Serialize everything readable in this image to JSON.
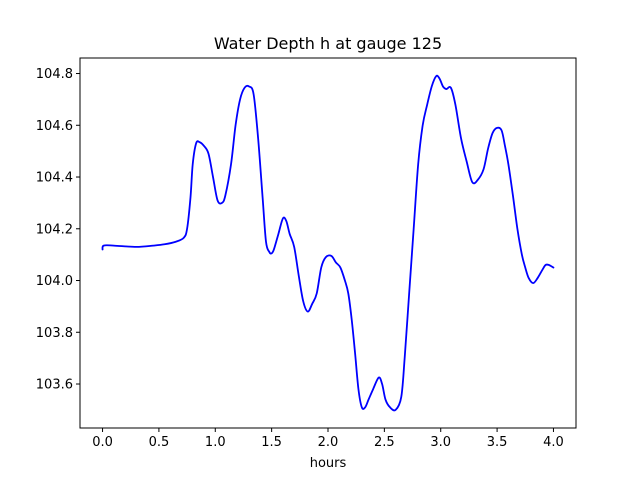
{
  "chart_data": {
    "type": "line",
    "title": "Water Depth h at gauge 125",
    "xlabel": "hours",
    "ylabel": "",
    "xlim": [
      -0.2,
      4.2
    ],
    "ylim": [
      103.43,
      104.86
    ],
    "xticks": [
      0.0,
      0.5,
      1.0,
      1.5,
      2.0,
      2.5,
      3.0,
      3.5,
      4.0
    ],
    "xtick_labels": [
      "0.0",
      "0.5",
      "1.0",
      "1.5",
      "2.0",
      "2.5",
      "3.0",
      "3.5",
      "4.0"
    ],
    "yticks": [
      103.6,
      103.8,
      104.0,
      104.2,
      104.4,
      104.6,
      104.8
    ],
    "ytick_labels": [
      "103.6",
      "103.8",
      "104.0",
      "104.2",
      "104.4",
      "104.6",
      "104.8"
    ],
    "grid": false,
    "series": [
      {
        "color": "#0000ff",
        "x": [
          0.0,
          0.01,
          0.1,
          0.3,
          0.45,
          0.55,
          0.65,
          0.72,
          0.75,
          0.78,
          0.8,
          0.83,
          0.86,
          0.9,
          0.94,
          0.98,
          1.02,
          1.06,
          1.09,
          1.14,
          1.18,
          1.22,
          1.26,
          1.3,
          1.34,
          1.38,
          1.42,
          1.45,
          1.48,
          1.5,
          1.52,
          1.56,
          1.6,
          1.63,
          1.66,
          1.7,
          1.74,
          1.78,
          1.82,
          1.86,
          1.9,
          1.94,
          1.98,
          2.03,
          2.07,
          2.11,
          2.15,
          2.18,
          2.21,
          2.24,
          2.27,
          2.3,
          2.33,
          2.36,
          2.4,
          2.45,
          2.48,
          2.51,
          2.55,
          2.6,
          2.65,
          2.68,
          2.72,
          2.76,
          2.8,
          2.84,
          2.88,
          2.92,
          2.96,
          2.99,
          3.02,
          3.05,
          3.09,
          3.13,
          3.18,
          3.23,
          3.28,
          3.33,
          3.38,
          3.42,
          3.46,
          3.5,
          3.54,
          3.57,
          3.6,
          3.64,
          3.68,
          3.72,
          3.75,
          3.78,
          3.82,
          3.86,
          3.9,
          3.93,
          3.96,
          4.0
        ],
        "y": [
          104.12,
          104.135,
          104.135,
          104.13,
          104.135,
          104.14,
          104.15,
          104.165,
          104.2,
          104.32,
          104.45,
          104.53,
          104.535,
          104.52,
          104.49,
          104.4,
          104.31,
          104.3,
          104.33,
          104.45,
          104.6,
          104.7,
          104.745,
          104.75,
          104.72,
          104.55,
          104.32,
          104.15,
          104.11,
          104.105,
          104.12,
          104.18,
          104.24,
          104.23,
          104.18,
          104.13,
          104.02,
          103.92,
          103.88,
          103.91,
          103.95,
          104.05,
          104.09,
          104.095,
          104.07,
          104.05,
          104.0,
          103.95,
          103.85,
          103.72,
          103.58,
          103.51,
          103.51,
          103.54,
          103.58,
          103.625,
          103.6,
          103.54,
          103.51,
          103.5,
          103.55,
          103.7,
          103.95,
          104.2,
          104.45,
          104.6,
          104.68,
          104.75,
          104.79,
          104.78,
          104.75,
          104.74,
          104.745,
          104.68,
          104.55,
          104.46,
          104.38,
          104.39,
          104.43,
          104.51,
          104.57,
          104.59,
          104.58,
          104.52,
          104.45,
          104.33,
          104.2,
          104.1,
          104.05,
          104.01,
          103.99,
          104.01,
          104.04,
          104.06,
          104.06,
          104.05
        ]
      }
    ]
  }
}
